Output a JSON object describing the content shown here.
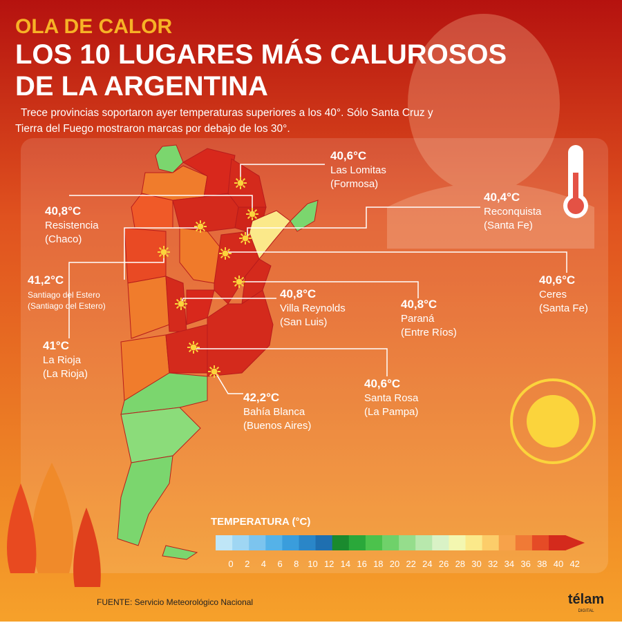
{
  "header": {
    "kicker": "OLA DE CALOR",
    "title_lines": [
      "LOS 10 LUGARES MÁS CALUROSOS",
      "DE LA ARGENTINA"
    ],
    "subtitle_lines": [
      "Trece provincias soportaron ayer temperaturas superiores a los 40°. Sólo Santa Cruz y",
      "Tierra del Fuego mostraron marcas por debajo de los 30°."
    ]
  },
  "locations": [
    {
      "temp": "40,6°C",
      "city": "Las Lomitas",
      "province": "(Formosa)"
    },
    {
      "temp": "40,8°C",
      "city": "Resistencia",
      "province": "(Chaco)"
    },
    {
      "temp": "40,4°C",
      "city": "Reconquista",
      "province": "(Santa Fe)"
    },
    {
      "temp": "41,2°C",
      "city": "Santiago del Estero",
      "province": "(Santiago del Estero)"
    },
    {
      "temp": "41°C",
      "city": "La Rioja",
      "province": "(La Rioja)"
    },
    {
      "temp": "40,6°C",
      "city": "Ceres",
      "province": "(Santa Fe)"
    },
    {
      "temp": "40,8°C",
      "city": "Villa Reynolds",
      "province": "(San Luis)"
    },
    {
      "temp": "40,8°C",
      "city": "Paraná",
      "province": "(Entre Ríos)"
    },
    {
      "temp": "40,6°C",
      "city": "Santa Rosa",
      "province": "(La Pampa)"
    },
    {
      "temp": "42,2°C",
      "city": "Bahía Blanca",
      "province": "(Buenos Aires)"
    }
  ],
  "legend": {
    "title": "TEMPERATURA (°C)",
    "ticks": [
      "0",
      "2",
      "4",
      "6",
      "8",
      "10",
      "12",
      "14",
      "16",
      "18",
      "20",
      "22",
      "24",
      "26",
      "28",
      "30",
      "32",
      "34",
      "36",
      "38",
      "40",
      "42"
    ],
    "colors": [
      "#bfe6f7",
      "#9fd6f3",
      "#7cc4ee",
      "#55b2e8",
      "#3a9ddc",
      "#2a86c8",
      "#1f6fb0",
      "#1a8a2e",
      "#2aa83a",
      "#4cc24c",
      "#6fd16a",
      "#95dd8c",
      "#b8e8ad",
      "#d9f2c6",
      "#f3f7b0",
      "#fbe98a",
      "#fccd6a",
      "#f7a24a",
      "#f07a36",
      "#e54b26",
      "#d42a1c"
    ]
  },
  "footer": {
    "source": "FUENTE: Servicio Meteorológico Nacional",
    "logo": "télam",
    "logo_sub": "DIGITAL"
  }
}
